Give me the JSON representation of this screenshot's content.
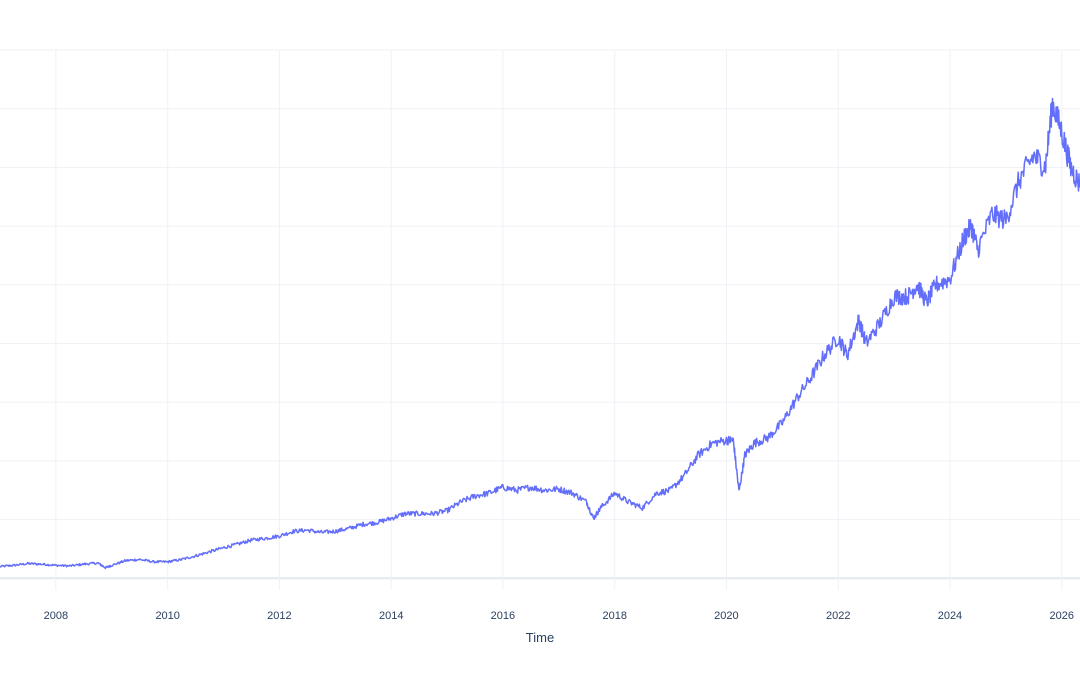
{
  "chart_data": {
    "type": "line",
    "title": "",
    "xlabel": "Time",
    "ylabel": "",
    "x_tick_labels": [
      "2008",
      "2010",
      "2012",
      "2014",
      "2016",
      "2018",
      "2020",
      "2022",
      "2024",
      "2026"
    ],
    "xlim": [
      "2007-01-01",
      "2026-04-30"
    ],
    "ylim": [
      -0.2,
      9.0
    ],
    "y_gridline_values": [
      0,
      1,
      2,
      3,
      4,
      5,
      6,
      7,
      8,
      9
    ],
    "grid": true,
    "legend": "none",
    "series": [
      {
        "color": "#636efa",
        "x": [
          "2007-01-01",
          "2007-04-01",
          "2007-07-01",
          "2007-10-01",
          "2008-01-01",
          "2008-04-01",
          "2008-07-01",
          "2008-10-01",
          "2008-11-20",
          "2009-01-01",
          "2009-04-01",
          "2009-07-01",
          "2009-10-01",
          "2010-01-01",
          "2010-04-01",
          "2010-07-01",
          "2010-10-01",
          "2011-01-01",
          "2011-04-01",
          "2011-07-01",
          "2011-10-01",
          "2012-01-01",
          "2012-04-01",
          "2012-07-01",
          "2012-10-01",
          "2013-01-01",
          "2013-04-01",
          "2013-07-01",
          "2013-10-01",
          "2014-01-01",
          "2014-04-01",
          "2014-07-01",
          "2014-10-01",
          "2015-01-01",
          "2015-04-01",
          "2015-07-01",
          "2015-10-01",
          "2016-01-01",
          "2016-04-01",
          "2016-07-01",
          "2016-10-01",
          "2017-01-01",
          "2017-04-01",
          "2017-07-01",
          "2017-08-15",
          "2017-10-01",
          "2018-01-01",
          "2018-04-01",
          "2018-07-01",
          "2018-10-01",
          "2019-01-01",
          "2019-04-01",
          "2019-07-01",
          "2019-10-01",
          "2020-01-01",
          "2020-02-15",
          "2020-03-23",
          "2020-05-01",
          "2020-07-01",
          "2020-10-01",
          "2021-01-01",
          "2021-04-01",
          "2021-07-01",
          "2021-10-01",
          "2022-01-01",
          "2022-03-01",
          "2022-05-15",
          "2022-07-01",
          "2022-10-01",
          "2023-01-01",
          "2023-04-01",
          "2023-06-01",
          "2023-08-01",
          "2023-10-01",
          "2024-01-01",
          "2024-04-01",
          "2024-05-20",
          "2024-07-01",
          "2024-10-01",
          "2025-01-01",
          "2025-04-01",
          "2025-07-01",
          "2025-09-15",
          "2025-11-01",
          "2026-01-01",
          "2026-03-01",
          "2026-04-30"
        ],
        "y": [
          0.2,
          0.22,
          0.25,
          0.24,
          0.22,
          0.21,
          0.24,
          0.26,
          0.18,
          0.22,
          0.3,
          0.32,
          0.28,
          0.28,
          0.32,
          0.38,
          0.45,
          0.52,
          0.58,
          0.65,
          0.68,
          0.72,
          0.8,
          0.82,
          0.78,
          0.8,
          0.85,
          0.92,
          0.95,
          1.02,
          1.1,
          1.1,
          1.1,
          1.15,
          1.3,
          1.4,
          1.45,
          1.55,
          1.5,
          1.55,
          1.5,
          1.52,
          1.45,
          1.3,
          1.02,
          1.2,
          1.45,
          1.3,
          1.2,
          1.45,
          1.5,
          1.75,
          2.1,
          2.3,
          2.35,
          2.35,
          1.48,
          2.1,
          2.3,
          2.4,
          2.65,
          3.05,
          3.4,
          3.8,
          4.1,
          3.8,
          4.4,
          4.0,
          4.35,
          4.8,
          4.8,
          5.0,
          4.7,
          5.0,
          5.1,
          5.8,
          6.0,
          5.6,
          6.2,
          6.1,
          6.8,
          7.2,
          7.0,
          8.1,
          7.6,
          7.0,
          6.7
        ]
      }
    ]
  }
}
